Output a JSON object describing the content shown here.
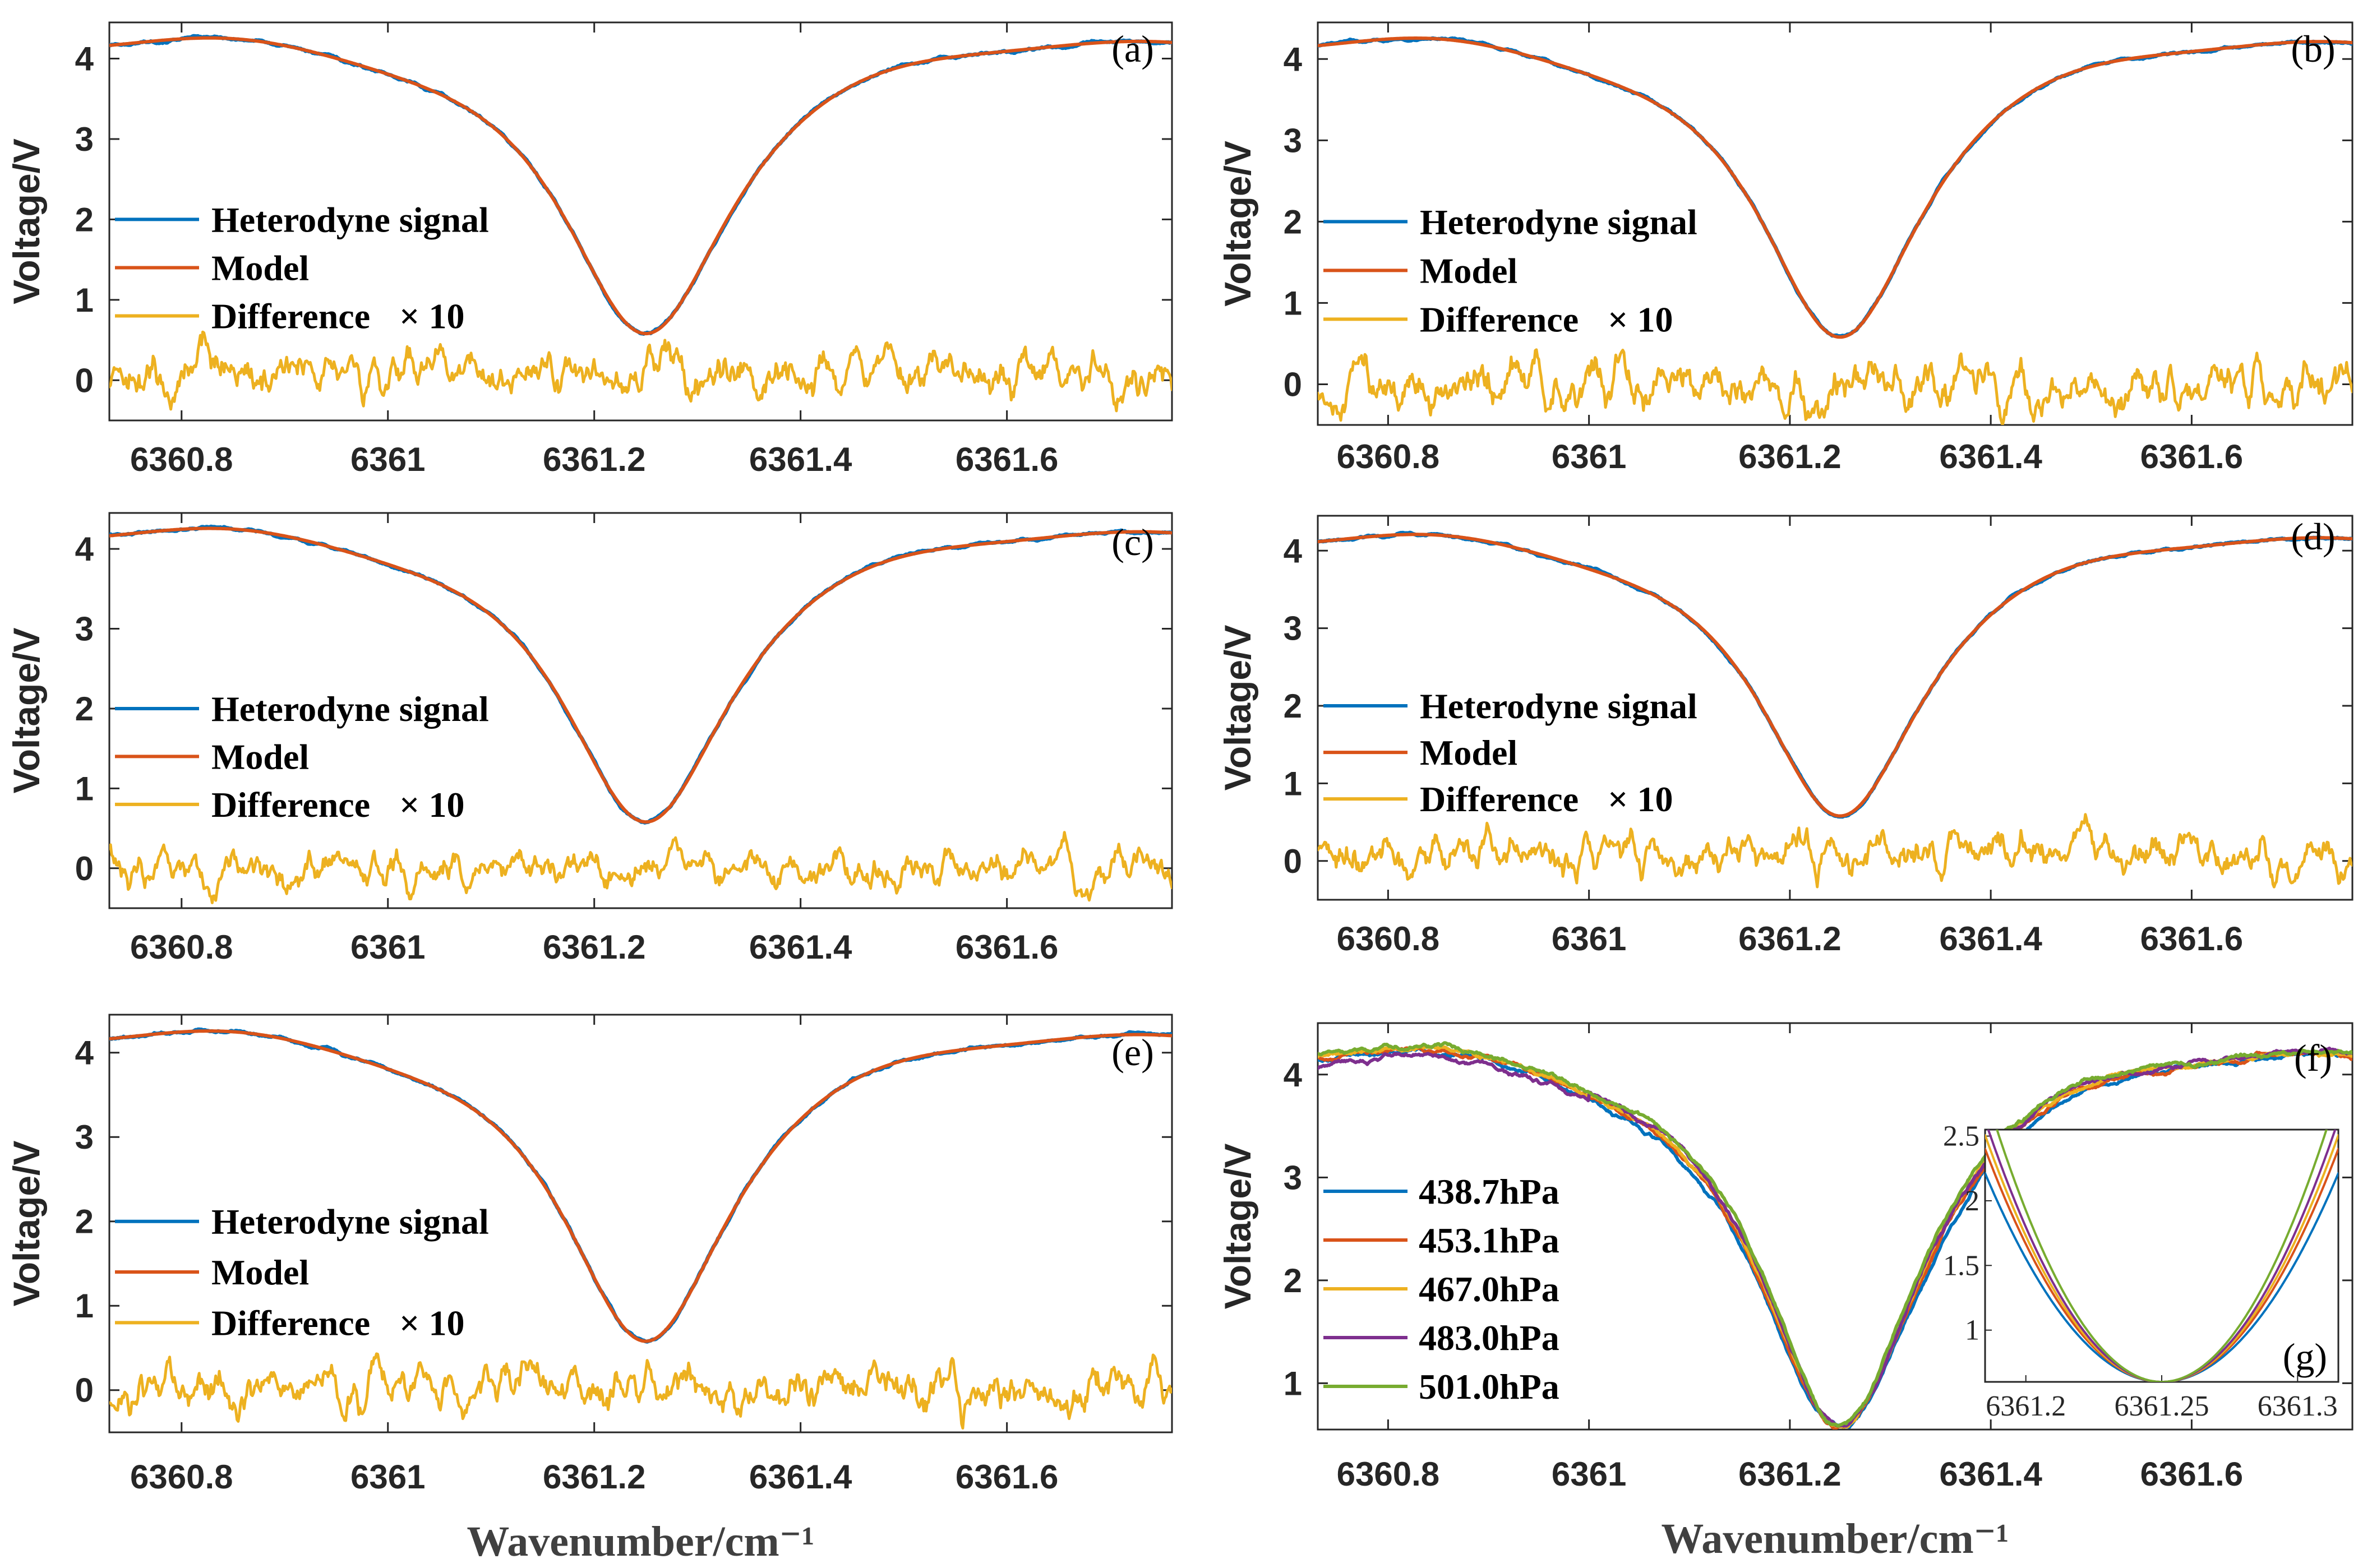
{
  "colors": {
    "blue": "#0072BD",
    "orange": "#D95319",
    "yellow": "#EDB120",
    "purple": "#7E2F8E",
    "green": "#77AC30",
    "axis": "#262626"
  },
  "chart_data": [
    {
      "type": "line",
      "panel": "(a)",
      "xlim": [
        6360.73,
        6361.76
      ],
      "ylim": [
        -0.5,
        4.45
      ],
      "xticks": [
        "6360.8",
        "6361",
        "6361.2",
        "6361.4",
        "6361.6"
      ],
      "yticks": [
        "0",
        "1",
        "2",
        "3",
        "4"
      ],
      "ylabel": "Voltage/V",
      "xlabel": "",
      "legend": [
        "Heterodyne signal",
        "Model",
        "Difference",
        "× 10"
      ],
      "series": [
        {
          "name": "Heterodyne signal",
          "profile": {
            "center": 6361.25,
            "baseline": 4.3,
            "min": 0.58
          }
        },
        {
          "name": "Model",
          "profile": {
            "center": 6361.25,
            "baseline": 4.3,
            "min": 0.58
          }
        },
        {
          "name": "Difference × 10",
          "range": [
            -0.45,
            0.6
          ]
        }
      ]
    },
    {
      "type": "line",
      "panel": "(b)",
      "xlim": [
        6360.73,
        6361.76
      ],
      "ylim": [
        -0.5,
        4.45
      ],
      "xticks": [
        "6360.8",
        "6361",
        "6361.2",
        "6361.4",
        "6361.6"
      ],
      "yticks": [
        "0",
        "1",
        "2",
        "3",
        "4"
      ],
      "ylabel": "Voltage/V",
      "xlabel": "",
      "legend": [
        "Heterodyne signal",
        "Model",
        "Difference",
        "× 10"
      ],
      "series": [
        {
          "name": "Heterodyne signal",
          "profile": {
            "center": 6361.25,
            "baseline": 4.3,
            "min": 0.58
          }
        },
        {
          "name": "Model",
          "profile": {
            "center": 6361.25,
            "baseline": 4.3,
            "min": 0.58
          }
        },
        {
          "name": "Difference × 10",
          "range": [
            -0.5,
            0.45
          ]
        }
      ]
    },
    {
      "type": "line",
      "panel": "(c)",
      "xlim": [
        6360.73,
        6361.76
      ],
      "ylim": [
        -0.5,
        4.45
      ],
      "xticks": [
        "6360.8",
        "6361",
        "6361.2",
        "6361.4",
        "6361.6"
      ],
      "yticks": [
        "0",
        "1",
        "2",
        "3",
        "4"
      ],
      "ylabel": "Voltage/V",
      "xlabel": "",
      "legend": [
        "Heterodyne signal",
        "Model",
        "Difference",
        "× 10"
      ],
      "series": [
        {
          "name": "Heterodyne signal",
          "profile": {
            "center": 6361.25,
            "baseline": 4.3,
            "min": 0.58
          }
        },
        {
          "name": "Model",
          "profile": {
            "center": 6361.25,
            "baseline": 4.3,
            "min": 0.58
          }
        },
        {
          "name": "Difference × 10",
          "range": [
            -0.5,
            0.45
          ]
        }
      ]
    },
    {
      "type": "line",
      "panel": "(d)",
      "xlim": [
        6360.73,
        6361.76
      ],
      "ylim": [
        -0.5,
        4.45
      ],
      "xticks": [
        "6360.8",
        "6361",
        "6361.2",
        "6361.4",
        "6361.6"
      ],
      "yticks": [
        "0",
        "1",
        "2",
        "3",
        "4"
      ],
      "ylabel": "Voltage/V",
      "xlabel": "",
      "legend": [
        "Heterodyne signal",
        "Model",
        "Difference",
        "× 10"
      ],
      "series": [
        {
          "name": "Heterodyne signal",
          "profile": {
            "center": 6361.25,
            "baseline": 4.25,
            "min": 0.58
          }
        },
        {
          "name": "Model",
          "profile": {
            "center": 6361.25,
            "baseline": 4.25,
            "min": 0.58
          }
        },
        {
          "name": "Difference × 10",
          "range": [
            -0.45,
            0.6
          ]
        }
      ]
    },
    {
      "type": "line",
      "panel": "(e)",
      "xlim": [
        6360.73,
        6361.76
      ],
      "ylim": [
        -0.5,
        4.45
      ],
      "xticks": [
        "6360.8",
        "6361",
        "6361.2",
        "6361.4",
        "6361.6"
      ],
      "yticks": [
        "0",
        "1",
        "2",
        "3",
        "4"
      ],
      "ylabel": "Voltage/V",
      "xlabel": "Wavenumber/cm⁻¹",
      "legend": [
        "Heterodyne signal",
        "Model",
        "Difference",
        "× 10"
      ],
      "series": [
        {
          "name": "Heterodyne signal",
          "profile": {
            "center": 6361.25,
            "baseline": 4.3,
            "min": 0.58
          }
        },
        {
          "name": "Model",
          "profile": {
            "center": 6361.25,
            "baseline": 4.3,
            "min": 0.58
          }
        },
        {
          "name": "Difference × 10",
          "range": [
            -0.45,
            0.5
          ]
        }
      ]
    },
    {
      "type": "line",
      "panel": "(f)",
      "xlim": [
        6360.73,
        6361.76
      ],
      "ylim": [
        0.55,
        4.5
      ],
      "xticks": [
        "6360.8",
        "6361",
        "6361.2",
        "6361.4",
        "6361.6"
      ],
      "yticks": [
        "1",
        "2",
        "3",
        "4"
      ],
      "ylabel": "Voltage/V",
      "xlabel": "Wavenumber/cm⁻¹",
      "legend": [
        "438.7hPa",
        "453.1hPa",
        "467.0hPa",
        "483.0hPa",
        "501.0hPa"
      ],
      "series": [
        {
          "name": "438.7hPa",
          "profile": {
            "center": 6361.25,
            "baseline": 4.3,
            "min": 0.58
          }
        },
        {
          "name": "453.1hPa",
          "profile": {
            "center": 6361.25,
            "baseline": 4.3,
            "min": 0.58
          }
        },
        {
          "name": "467.0hPa",
          "profile": {
            "center": 6361.25,
            "baseline": 4.3,
            "min": 0.58
          }
        },
        {
          "name": "483.0hPa",
          "profile": {
            "center": 6361.25,
            "baseline": 4.3,
            "min": 0.58
          }
        },
        {
          "name": "501.0hPa",
          "profile": {
            "center": 6361.25,
            "baseline": 4.3,
            "min": 0.58
          }
        }
      ],
      "inset": {
        "panel": "(g)",
        "xlim": [
          6361.185,
          6361.315
        ],
        "ylim": [
          0.6,
          2.55
        ],
        "xticks": [
          "6361.2",
          "6361.25",
          "6361.3"
        ],
        "yticks": [
          "1",
          "1.5",
          "2",
          "2.5"
        ]
      }
    }
  ]
}
